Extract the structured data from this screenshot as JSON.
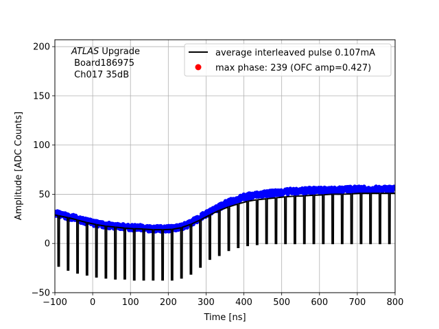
{
  "chart_data": {
    "type": "scatter",
    "title": "",
    "xlabel": "Time [ns]",
    "ylabel": "Amplitude [ADC Counts]",
    "xlim": [
      -100,
      800
    ],
    "ylim": [
      -50,
      207
    ],
    "xticks": [
      -100,
      0,
      100,
      200,
      300,
      400,
      500,
      600,
      700,
      800
    ],
    "yticks": [
      -50,
      0,
      50,
      100,
      150,
      200
    ],
    "grid": true,
    "legend_position": "top-right",
    "annotation": {
      "line1_italic": "ATLAS",
      "line1_rest": " Upgrade",
      "line2": " Board186975",
      "line3": " Ch017 35dB"
    },
    "series": [
      {
        "name": "average interleaved pulse 0.107mA",
        "kind": "line",
        "color": "#000000",
        "period_ns": 25,
        "low_level_x": [
          -90,
          -65,
          -40,
          -15,
          10,
          35,
          60,
          85,
          110,
          135,
          160,
          185,
          210,
          235,
          260,
          285,
          310,
          335,
          360,
          385,
          410,
          435,
          460,
          485,
          510,
          535,
          560,
          585,
          610,
          635,
          660,
          685,
          710,
          735,
          760,
          785
        ],
        "low_level_y": [
          -23,
          -27,
          -30,
          -32,
          -34,
          -35,
          -36,
          -36,
          -37,
          -37,
          -37,
          -37,
          -37,
          -35,
          -31,
          -24,
          -16,
          -12,
          -7,
          -4,
          -2,
          -1,
          0,
          0,
          0,
          0,
          0,
          0,
          0,
          0,
          0,
          0,
          0,
          0,
          0,
          0
        ],
        "high_level_x": [
          -100,
          -75,
          -50,
          -25,
          0,
          25,
          50,
          75,
          100,
          125,
          150,
          175,
          200,
          225,
          250,
          275,
          300,
          325,
          350,
          375,
          400,
          425,
          450,
          475,
          500,
          525,
          550,
          575,
          600,
          625,
          650,
          675,
          700,
          725,
          750,
          775,
          800
        ],
        "high_level_y": [
          29,
          27,
          25,
          22,
          20,
          18,
          17,
          16,
          15,
          15,
          14,
          14,
          14,
          15,
          18,
          22,
          27,
          32,
          36,
          39,
          42,
          44,
          45,
          46,
          47,
          48,
          48,
          49,
          49,
          50,
          50,
          50,
          51,
          51,
          51,
          51,
          51
        ]
      },
      {
        "name": "",
        "kind": "scatter",
        "color": "#0000ff",
        "x": [
          -100,
          -75,
          -50,
          -25,
          0,
          25,
          50,
          75,
          100,
          125,
          150,
          175,
          200,
          225,
          250,
          275,
          300,
          325,
          350,
          375,
          400,
          425,
          450,
          475,
          500,
          525,
          550,
          575,
          600,
          625,
          650,
          675,
          700,
          725,
          750,
          775,
          800
        ],
        "y": [
          31,
          28,
          26,
          23,
          21,
          19,
          18,
          17,
          16,
          16,
          15,
          15,
          15,
          16,
          19,
          24,
          30,
          35,
          40,
          44,
          47,
          49,
          50,
          51,
          52,
          53,
          53,
          54,
          54,
          54,
          54,
          55,
          55,
          55,
          55,
          55,
          55
        ],
        "spread": 6
      },
      {
        "name": "max phase: 239 (OFC amp=0.427)",
        "kind": "scatter",
        "color": "#ff0000",
        "x": [],
        "y": []
      }
    ]
  }
}
